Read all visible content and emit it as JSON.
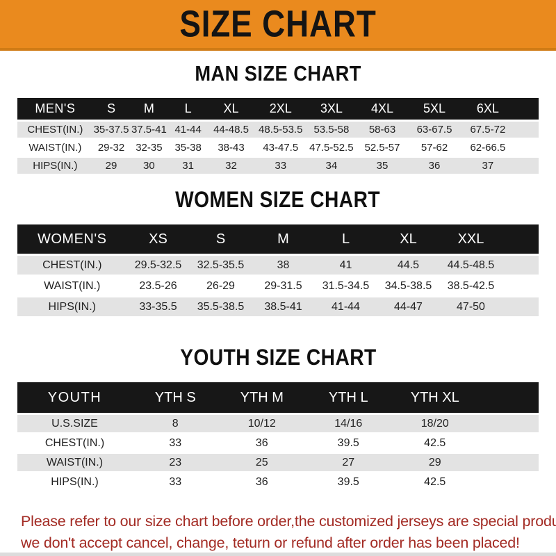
{
  "banner": {
    "title": "SIZE CHART"
  },
  "sections": [
    {
      "title": "MAN SIZE CHART",
      "header_label": "MEN'S",
      "columns": [
        "S",
        "M",
        "L",
        "XL",
        "2XL",
        "3XL",
        "4XL",
        "5XL",
        "6XL"
      ],
      "rows": [
        {
          "label": "CHEST(IN.)",
          "values": [
            "35-37.5",
            "37.5-41",
            "41-44",
            "44-48.5",
            "48.5-53.5",
            "53.5-58",
            "58-63",
            "63-67.5",
            "67.5-72"
          ]
        },
        {
          "label": "WAIST(IN.)",
          "values": [
            "29-32",
            "32-35",
            "35-38",
            "38-43",
            "43-47.5",
            "47.5-52.5",
            "52.5-57",
            "57-62",
            "62-66.5"
          ]
        },
        {
          "label": "HIPS(IN.)",
          "values": [
            "29",
            "30",
            "31",
            "32",
            "33",
            "34",
            "35",
            "36",
            "37"
          ]
        }
      ]
    },
    {
      "title": "WOMEN SIZE CHART",
      "header_label": "WOMEN'S",
      "columns": [
        "XS",
        "S",
        "M",
        "L",
        "XL",
        "XXL"
      ],
      "rows": [
        {
          "label": "CHEST(IN.)",
          "values": [
            "29.5-32.5",
            "32.5-35.5",
            "38",
            "41",
            "44.5",
            "44.5-48.5"
          ]
        },
        {
          "label": "WAIST(IN.)",
          "values": [
            "23.5-26",
            "26-29",
            "29-31.5",
            "31.5-34.5",
            "34.5-38.5",
            "38.5-42.5"
          ]
        },
        {
          "label": "HIPS(IN.)",
          "values": [
            "33-35.5",
            "35.5-38.5",
            "38.5-41",
            "41-44",
            "44-47",
            "47-50"
          ]
        }
      ]
    },
    {
      "title": "YOUTH SIZE CHART",
      "header_label": "YOUTH",
      "columns": [
        "YTH S",
        "YTH M",
        "YTH L",
        "YTH XL"
      ],
      "rows": [
        {
          "label": "U.S.SIZE",
          "values": [
            "8",
            "10/12",
            "14/16",
            "18/20"
          ]
        },
        {
          "label": "CHEST(IN.)",
          "values": [
            "33",
            "36",
            "39.5",
            "42.5"
          ]
        },
        {
          "label": "WAIST(IN.)",
          "values": [
            "23",
            "25",
            "27",
            "29"
          ]
        },
        {
          "label": "HIPS(IN.)",
          "values": [
            "33",
            "36",
            "39.5",
            "42.5"
          ]
        }
      ]
    }
  ],
  "footer": {
    "line1": "Please refer to our size chart before order,the customized jerseys are special products,",
    "line2": "we don't accept cancel, change, teturn or refund after order has been placed!"
  },
  "colors": {
    "banner_orange": "#EA8A1E",
    "banner_edge": "#D07B15",
    "header_band_black": "#171717",
    "stripe_gray": "#E3E3E3",
    "footer_red": "#A32B24",
    "title_black": "#101010"
  }
}
